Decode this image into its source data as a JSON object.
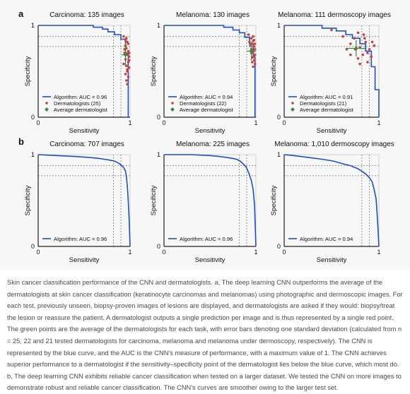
{
  "figure": {
    "panel_labels": [
      "a",
      "b"
    ],
    "caption": "Skin cancer classification performance of the CNN and dermatologists. a, The deep learning CNN outperforms the average of the dermatologists at skin cancer classification (keratinocyte carcinomas and melanomas) using photographic and dermoscopic images. For each test, previously unseen, biopsy-proven images of lesions are displayed, and dermatologists are asked if they would: biopsy/treat the lesion or reassure the patient. A dermatologist outputs a single prediction per image and is thus represented by a single red point. The green points are the average of the dermatologists for each task, with error bars denoting one standard deviation (calculated from n = 25, 22 and 21 tested dermatologists for carcinoma, melanoma and melanoma under dermoscopy, respectively). The CNN is represented by the blue curve, and the AUC is the CNN's measure of performance, with a maximum value of 1. The CNN achieves superior performance to a dermatologist if the sensitivity–specificity point of the dermatologist lies below the blue curve, which most do. b, The deep learning CNN exhibits reliable cancer classification when tested on a larger dataset. We tested the CNN on more images to demonstrate robust and reliable cancer classification. The CNN's curves are smoother owing to the larger test set."
  },
  "colors": {
    "curve": "#1f4fc4",
    "dermatologist": "#c8413f",
    "average": "#3f8a3a",
    "guide": "#777777",
    "axis": "#222222"
  },
  "chart_data": [
    {
      "type": "line",
      "panel": "a",
      "title": "Carcinoma: 135 images",
      "xlabel": "Sensitivity",
      "ylabel": "Specificity",
      "xlim": [
        0,
        1
      ],
      "ylim": [
        0,
        1
      ],
      "x_ticks": [
        "0",
        "1"
      ],
      "y_ticks": [
        "0",
        "1"
      ],
      "legend": {
        "placement": "bottom-left",
        "entries": [
          "Algorithm: AUC = 0.96",
          "Dermatologists (25)",
          "Average dermatologist"
        ]
      },
      "series": [
        {
          "name": "Algorithm: AUC = 0.96",
          "x": [
            0,
            0.6,
            0.6,
            0.7,
            0.7,
            0.76,
            0.76,
            0.83,
            0.83,
            0.9,
            0.9,
            0.95,
            0.95,
            0.98,
            0.98,
            1
          ],
          "y": [
            1,
            1,
            0.98,
            0.98,
            0.96,
            0.96,
            0.93,
            0.93,
            0.9,
            0.9,
            0.85,
            0.85,
            0.7,
            0.7,
            0,
            0
          ]
        }
      ],
      "dermatologists": [
        [
          0.93,
          0.88
        ],
        [
          0.95,
          0.84
        ],
        [
          0.97,
          0.82
        ],
        [
          0.95,
          0.78
        ],
        [
          0.96,
          0.75
        ],
        [
          0.98,
          0.72
        ],
        [
          0.94,
          0.7
        ],
        [
          0.97,
          0.68
        ],
        [
          0.99,
          0.66
        ],
        [
          0.95,
          0.63
        ],
        [
          0.98,
          0.6
        ],
        [
          0.93,
          0.58
        ],
        [
          0.96,
          0.56
        ],
        [
          0.99,
          0.54
        ],
        [
          0.97,
          0.5
        ],
        [
          0.95,
          0.47
        ],
        [
          0.98,
          0.44
        ],
        [
          0.96,
          0.4
        ],
        [
          0.97,
          0.36
        ],
        [
          0.99,
          0.62
        ],
        [
          0.94,
          0.74
        ],
        [
          0.98,
          0.8
        ],
        [
          0.96,
          0.86
        ],
        [
          0.97,
          0.52
        ],
        [
          0.99,
          0.7
        ]
      ],
      "average": {
        "x": 0.95,
        "y": 0.68,
        "x_err": 0.04,
        "y_err": 0.13
      },
      "guides": {
        "x": [
          0.82,
          0.9
        ],
        "y": [
          0.88,
          0.77
        ]
      }
    },
    {
      "type": "line",
      "panel": "a",
      "title": "Melanoma: 130 images",
      "xlabel": "Sensitivity",
      "ylabel": "Specificity",
      "xlim": [
        0,
        1
      ],
      "ylim": [
        0,
        1
      ],
      "x_ticks": [
        "0",
        "1"
      ],
      "y_ticks": [
        "0",
        "1"
      ],
      "legend": {
        "placement": "bottom-left",
        "entries": [
          "Algorithm: AUC = 0.94",
          "Dermatologists (22)",
          "Average dermatologist"
        ]
      },
      "series": [
        {
          "name": "Algorithm: AUC = 0.94",
          "x": [
            0,
            0.65,
            0.65,
            0.75,
            0.75,
            0.82,
            0.82,
            0.88,
            0.88,
            0.93,
            0.93,
            0.97,
            0.97,
            0.99,
            0.99,
            1
          ],
          "y": [
            1,
            1,
            0.98,
            0.98,
            0.95,
            0.95,
            0.92,
            0.92,
            0.87,
            0.87,
            0.8,
            0.8,
            0.65,
            0.65,
            0,
            0
          ]
        }
      ],
      "dermatologists": [
        [
          0.92,
          0.9
        ],
        [
          0.95,
          0.86
        ],
        [
          0.97,
          0.83
        ],
        [
          0.96,
          0.8
        ],
        [
          0.98,
          0.77
        ],
        [
          0.95,
          0.74
        ],
        [
          0.97,
          0.71
        ],
        [
          0.99,
          0.68
        ],
        [
          0.96,
          0.65
        ],
        [
          0.98,
          0.62
        ],
        [
          0.94,
          0.78
        ],
        [
          0.99,
          0.58
        ],
        [
          0.97,
          0.55
        ],
        [
          0.95,
          0.7
        ],
        [
          0.98,
          0.84
        ],
        [
          0.96,
          0.6
        ],
        [
          0.99,
          0.74
        ],
        [
          0.97,
          0.88
        ],
        [
          0.93,
          0.82
        ],
        [
          0.98,
          0.66
        ],
        [
          0.96,
          0.72
        ],
        [
          0.99,
          0.8
        ]
      ],
      "average": {
        "x": 0.95,
        "y": 0.72,
        "x_err": 0.05,
        "y_err": 0.1
      },
      "guides": {
        "x": [
          0.82,
          0.9
        ],
        "y": [
          0.88,
          0.77
        ]
      }
    },
    {
      "type": "line",
      "panel": "a",
      "title": "Melanoma: 111 dermoscopy images",
      "xlabel": "Sensitivity",
      "ylabel": "Specificity",
      "xlim": [
        0,
        1
      ],
      "ylim": [
        0,
        1
      ],
      "x_ticks": [
        "0",
        "1"
      ],
      "y_ticks": [
        "0",
        "1"
      ],
      "legend": {
        "placement": "bottom-left",
        "entries": [
          "Algorithm: AUC = 0.91",
          "Dermatologists (21)",
          "Average dermatologist"
        ]
      },
      "series": [
        {
          "name": "Algorithm: AUC = 0.91",
          "x": [
            0,
            0.4,
            0.4,
            0.55,
            0.55,
            0.65,
            0.65,
            0.72,
            0.72,
            0.8,
            0.8,
            0.86,
            0.86,
            0.92,
            0.92,
            0.96,
            0.96,
            1,
            1
          ],
          "y": [
            1,
            1,
            0.97,
            0.97,
            0.94,
            0.94,
            0.9,
            0.9,
            0.86,
            0.86,
            0.8,
            0.8,
            0.72,
            0.72,
            0.55,
            0.55,
            0.3,
            0.3,
            0
          ]
        }
      ],
      "dermatologists": [
        [
          0.5,
          0.95
        ],
        [
          0.62,
          0.88
        ],
        [
          0.78,
          0.92
        ],
        [
          0.84,
          0.9
        ],
        [
          0.7,
          0.8
        ],
        [
          0.75,
          0.74
        ],
        [
          0.8,
          0.76
        ],
        [
          0.86,
          0.82
        ],
        [
          0.9,
          0.74
        ],
        [
          0.83,
          0.68
        ],
        [
          0.88,
          0.6
        ],
        [
          0.92,
          0.66
        ],
        [
          0.95,
          0.78
        ],
        [
          0.7,
          0.68
        ],
        [
          0.78,
          0.64
        ],
        [
          0.85,
          0.86
        ],
        [
          0.93,
          0.82
        ],
        [
          0.66,
          0.74
        ],
        [
          0.8,
          0.58
        ],
        [
          0.88,
          0.7
        ],
        [
          0.74,
          0.86
        ]
      ],
      "average": {
        "x": 0.76,
        "y": 0.75,
        "x_err": 0.11,
        "y_err": 0.09
      },
      "guides": {
        "x": [
          0.82,
          0.9
        ],
        "y": [
          0.88,
          0.77
        ]
      }
    },
    {
      "type": "line",
      "panel": "b",
      "title": "Carcinoma: 707 images",
      "xlabel": "Sensitivity",
      "ylabel": "Specificity",
      "xlim": [
        0,
        1
      ],
      "ylim": [
        0,
        1
      ],
      "x_ticks": [
        "0",
        "1"
      ],
      "y_ticks": [
        "0",
        "1"
      ],
      "legend": {
        "placement": "bottom-left",
        "entries": [
          "Algorithm: AUC = 0.96"
        ]
      },
      "series": [
        {
          "name": "Algorithm: AUC = 0.96",
          "x": [
            0,
            0.2,
            0.4,
            0.55,
            0.65,
            0.72,
            0.78,
            0.83,
            0.87,
            0.9,
            0.93,
            0.95,
            0.96,
            0.97,
            0.98,
            0.99,
            1
          ],
          "y": [
            1,
            0.99,
            0.98,
            0.97,
            0.96,
            0.95,
            0.94,
            0.93,
            0.91,
            0.89,
            0.86,
            0.82,
            0.76,
            0.66,
            0.5,
            0.3,
            0
          ]
        }
      ],
      "guides": {
        "x": [
          0.82,
          0.9
        ],
        "y": [
          0.88,
          0.77
        ]
      }
    },
    {
      "type": "line",
      "panel": "b",
      "title": "Melanoma: 225 images",
      "xlabel": "Sensitivity",
      "ylabel": "Specificity",
      "xlim": [
        0,
        1
      ],
      "ylim": [
        0,
        1
      ],
      "x_ticks": [
        "0",
        "1"
      ],
      "y_ticks": [
        "0",
        "1"
      ],
      "legend": {
        "placement": "bottom-left",
        "entries": [
          "Algorithm: AUC = 0.96"
        ]
      },
      "series": [
        {
          "name": "Algorithm: AUC = 0.96",
          "x": [
            0,
            0.3,
            0.5,
            0.6,
            0.68,
            0.74,
            0.79,
            0.83,
            0.86,
            0.89,
            0.91,
            0.93,
            0.95,
            0.97,
            0.985,
            1
          ],
          "y": [
            1,
            1,
            0.99,
            0.98,
            0.97,
            0.96,
            0.95,
            0.93,
            0.9,
            0.87,
            0.83,
            0.78,
            0.72,
            0.62,
            0.45,
            0
          ]
        }
      ],
      "guides": {
        "x": [
          0.82,
          0.9
        ],
        "y": [
          0.88,
          0.77
        ]
      }
    },
    {
      "type": "line",
      "panel": "b",
      "title": "Melanoma: 1,010 dermoscopy images",
      "xlabel": "Sensitivity",
      "ylabel": "Specificity",
      "xlim": [
        0,
        1
      ],
      "ylim": [
        0,
        1
      ],
      "x_ticks": [
        "0",
        "1"
      ],
      "y_ticks": [
        "0",
        "1"
      ],
      "legend": {
        "placement": "bottom-left",
        "entries": [
          "Algorithm: AUC = 0.94"
        ]
      },
      "series": [
        {
          "name": "Algorithm: AUC = 0.94",
          "x": [
            0,
            0.1,
            0.25,
            0.4,
            0.52,
            0.62,
            0.7,
            0.77,
            0.82,
            0.86,
            0.9,
            0.93,
            0.95,
            0.97,
            0.98,
            0.99,
            1
          ],
          "y": [
            1,
            0.99,
            0.97,
            0.95,
            0.93,
            0.9,
            0.88,
            0.85,
            0.82,
            0.79,
            0.75,
            0.7,
            0.62,
            0.52,
            0.38,
            0.2,
            0
          ]
        }
      ],
      "guides": {
        "x": [
          0.82,
          0.9
        ],
        "y": [
          0.88,
          0.77
        ]
      }
    }
  ]
}
